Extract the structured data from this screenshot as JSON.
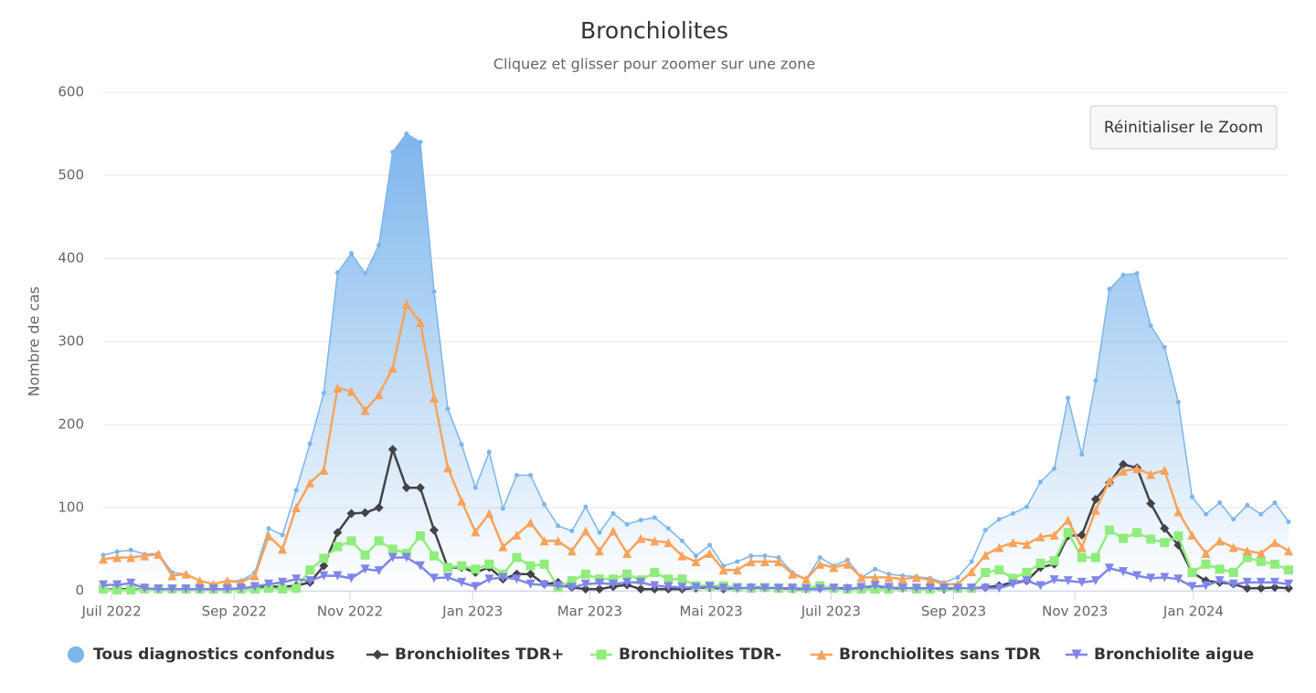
{
  "chart_data": {
    "type": "line",
    "title": "Bronchiolites",
    "subtitle": "Cliquez et glisser pour zoomer sur une zone",
    "y_label": "Nombre de cas",
    "reset_button": "Réinitialiser le Zoom",
    "grid": true,
    "legend": "bottom",
    "x": [
      0,
      1,
      2,
      3,
      4,
      5,
      6,
      7,
      8,
      9,
      10,
      11,
      12,
      13,
      14,
      15,
      16,
      17,
      18,
      19,
      20,
      21,
      22,
      23,
      24,
      25,
      26,
      27,
      28,
      29,
      30,
      31,
      32,
      33,
      34,
      35,
      36,
      37,
      38,
      39,
      40,
      41,
      42,
      43,
      44,
      45,
      46,
      47,
      48,
      49,
      50,
      51,
      52,
      53,
      54,
      55,
      56,
      57,
      58,
      59,
      60,
      61,
      62,
      63,
      64,
      65,
      66,
      67,
      68,
      69,
      70,
      71,
      72,
      73,
      74,
      75,
      76,
      77,
      78,
      79,
      80,
      81,
      82,
      83,
      84,
      85,
      86
    ],
    "xlim": [
      0,
      86
    ],
    "xticks": [
      {
        "value": 0.6,
        "label": "Juil 2022"
      },
      {
        "value": 9.5,
        "label": "Sep 2022"
      },
      {
        "value": 17.9,
        "label": "Nov 2022"
      },
      {
        "value": 26.8,
        "label": "Jan 2023"
      },
      {
        "value": 35.3,
        "label": "Mar 2023"
      },
      {
        "value": 44.1,
        "label": "Mai 2023"
      },
      {
        "value": 52.8,
        "label": "Juil 2023"
      },
      {
        "value": 61.7,
        "label": "Sep 2023"
      },
      {
        "value": 70.5,
        "label": "Nov 2023"
      },
      {
        "value": 79.1,
        "label": "Jan 2024"
      }
    ],
    "ylim": [
      0,
      600
    ],
    "yticks": [
      0,
      100,
      200,
      300,
      400,
      500,
      600
    ],
    "series": [
      {
        "name": "Tous diagnostics confondus",
        "color": "#7cb5ec",
        "type": "area",
        "marker": "circle",
        "values": [
          43,
          47,
          49,
          44,
          45,
          22,
          20,
          12,
          8,
          12,
          12,
          22,
          75,
          67,
          121,
          177,
          238,
          383,
          406,
          382,
          416,
          528,
          550,
          540,
          360,
          219,
          176,
          124,
          167,
          99,
          139,
          139,
          104,
          78,
          72,
          101,
          70,
          93,
          80,
          85,
          88,
          75,
          60,
          42,
          55,
          30,
          35,
          42,
          42,
          40,
          22,
          14,
          40,
          30,
          37,
          16,
          26,
          20,
          18,
          17,
          15,
          10,
          16,
          35,
          73,
          86,
          93,
          101,
          131,
          147,
          232,
          164,
          253,
          363,
          380,
          382,
          319,
          293,
          227,
          113,
          92,
          106,
          86,
          103,
          92,
          106,
          83
        ]
      },
      {
        "name": "Bronchiolites TDR+",
        "color": "#434348",
        "type": "line",
        "marker": "diamond",
        "values": [
          2,
          2,
          2,
          2,
          2,
          2,
          2,
          2,
          2,
          2,
          3,
          4,
          5,
          5,
          6,
          10,
          30,
          70,
          93,
          94,
          100,
          170,
          124,
          124,
          73,
          28,
          28,
          22,
          28,
          14,
          20,
          20,
          8,
          10,
          4,
          2,
          2,
          5,
          7,
          2,
          2,
          2,
          2,
          3,
          4,
          2,
          3,
          4,
          4,
          3,
          2,
          2,
          3,
          3,
          3,
          2,
          3,
          2,
          3,
          3,
          3,
          2,
          3,
          3,
          4,
          6,
          10,
          12,
          28,
          32,
          66,
          67,
          110,
          130,
          152,
          148,
          105,
          75,
          55,
          22,
          12,
          10,
          8,
          3,
          3,
          4,
          3
        ]
      },
      {
        "name": "Bronchiolites TDR-",
        "color": "#90ed7d",
        "type": "line",
        "marker": "square",
        "values": [
          2,
          1,
          1,
          2,
          2,
          2,
          2,
          2,
          2,
          2,
          2,
          2,
          3,
          2,
          3,
          25,
          39,
          53,
          60,
          43,
          60,
          50,
          45,
          66,
          42,
          28,
          30,
          26,
          32,
          20,
          40,
          30,
          32,
          4,
          12,
          20,
          14,
          14,
          20,
          13,
          22,
          14,
          14,
          6,
          6,
          6,
          4,
          3,
          4,
          3,
          3,
          3,
          6,
          3,
          2,
          2,
          2,
          2,
          4,
          2,
          2,
          4,
          3,
          3,
          22,
          25,
          15,
          22,
          33,
          36,
          70,
          40,
          40,
          73,
          63,
          70,
          62,
          58,
          66,
          22,
          32,
          26,
          22,
          40,
          35,
          32,
          25
        ]
      },
      {
        "name": "Bronchiolites sans TDR",
        "color": "#f7a35c",
        "type": "line",
        "marker": "triangle",
        "values": [
          38,
          40,
          40,
          42,
          44,
          18,
          20,
          12,
          8,
          12,
          10,
          18,
          66,
          50,
          100,
          130,
          145,
          244,
          240,
          217,
          236,
          268,
          345,
          323,
          232,
          148,
          108,
          71,
          93,
          53,
          67,
          82,
          60,
          60,
          48,
          72,
          48,
          72,
          45,
          63,
          60,
          58,
          42,
          35,
          45,
          25,
          25,
          35,
          35,
          35,
          20,
          14,
          32,
          28,
          32,
          16,
          16,
          16,
          14,
          16,
          13,
          8,
          8,
          23,
          43,
          52,
          58,
          56,
          65,
          67,
          85,
          52,
          97,
          132,
          144,
          147,
          140,
          145,
          95,
          67,
          45,
          60,
          52,
          48,
          45,
          58,
          48
        ]
      },
      {
        "name": "Bronchiolite aigue",
        "color": "#8085e9",
        "type": "line",
        "marker": "triangle-down",
        "values": [
          7,
          7,
          9,
          3,
          2,
          2,
          2,
          2,
          2,
          2,
          3,
          5,
          8,
          10,
          14,
          12,
          18,
          18,
          15,
          26,
          24,
          40,
          40,
          30,
          15,
          16,
          10,
          5,
          14,
          16,
          14,
          8,
          7,
          6,
          4,
          8,
          9,
          8,
          10,
          10,
          6,
          5,
          4,
          4,
          5,
          3,
          3,
          3,
          3,
          3,
          3,
          2,
          2,
          3,
          2,
          4,
          6,
          4,
          3,
          3,
          3,
          3,
          3,
          3,
          3,
          3,
          8,
          12,
          6,
          13,
          12,
          10,
          12,
          27,
          23,
          18,
          15,
          16,
          14,
          5,
          6,
          12,
          8,
          10,
          10,
          10,
          8
        ]
      }
    ]
  }
}
